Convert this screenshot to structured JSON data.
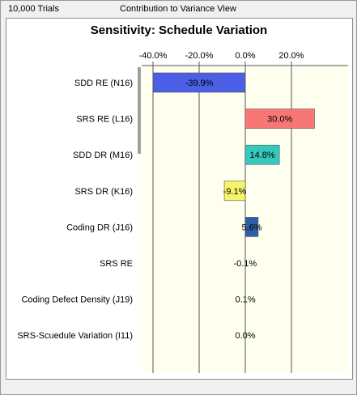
{
  "header": {
    "trials_label": "10,000 Trials",
    "view_label": "Contribution to Variance View"
  },
  "chart_data": {
    "type": "bar",
    "orientation": "horizontal",
    "title": "Sensitivity: Schedule Variation",
    "xlim": [
      -40.0,
      30.0
    ],
    "x_ticks": [
      "-40.0%",
      "-20.0%",
      "0.0%",
      "20.0%"
    ],
    "grid": true,
    "categories": [
      "SDD RE (N16)",
      "SRS RE (L16)",
      "SDD DR (M16)",
      "SRS DR (K16)",
      "Coding DR (J16)",
      "SRS RE",
      "Coding Defect Density (J19)",
      "SRS-Scuedule Variation (I11)"
    ],
    "values": [
      -39.9,
      30.0,
      14.8,
      -9.1,
      5.6,
      -0.1,
      0.1,
      0.0
    ],
    "value_labels": [
      "-39.9%",
      "30.0%",
      "14.8%",
      "-9.1%",
      "5.6%",
      "-0.1%",
      "0.1%",
      "0.0%"
    ],
    "bar_colors": [
      "#4a5fe6",
      "#f87676",
      "#37c8bd",
      "#f6f46a",
      "#2f5ea8",
      "#8888aa",
      "#8888aa",
      "#8888aa"
    ],
    "plot_background": "#fffff0"
  }
}
